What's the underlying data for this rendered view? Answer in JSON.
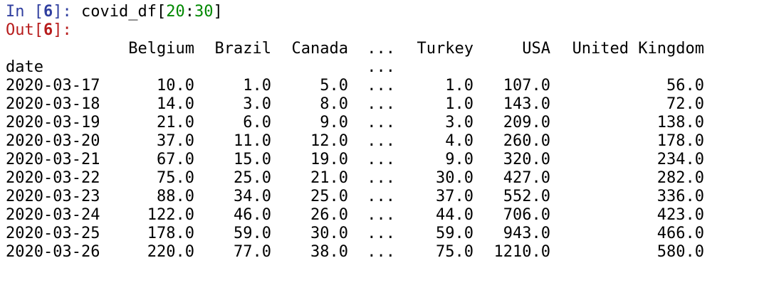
{
  "input": {
    "prompt_label": "In [",
    "exec_count": "6",
    "prompt_close": "]:",
    "code_prefix": "covid_df[",
    "code_start": "20",
    "code_colon": ":",
    "code_end": "30",
    "code_suffix": "]"
  },
  "output": {
    "prompt_label": "Out[",
    "exec_count": "6",
    "prompt_close": "]:"
  },
  "table": {
    "columns": [
      "Belgium",
      "Brazil",
      "Canada",
      "...",
      "Turkey",
      "USA",
      "United Kingdom"
    ],
    "index_name": "date",
    "index_name_ellipsis": "...",
    "rows": [
      {
        "date": "2020-03-17",
        "Belgium": "10.0",
        "Brazil": "1.0",
        "Canada": "5.0",
        "ellipsis": "...",
        "Turkey": "1.0",
        "USA": "107.0",
        "UK": "56.0"
      },
      {
        "date": "2020-03-18",
        "Belgium": "14.0",
        "Brazil": "3.0",
        "Canada": "8.0",
        "ellipsis": "...",
        "Turkey": "1.0",
        "USA": "143.0",
        "UK": "72.0"
      },
      {
        "date": "2020-03-19",
        "Belgium": "21.0",
        "Brazil": "6.0",
        "Canada": "9.0",
        "ellipsis": "...",
        "Turkey": "3.0",
        "USA": "209.0",
        "UK": "138.0"
      },
      {
        "date": "2020-03-20",
        "Belgium": "37.0",
        "Brazil": "11.0",
        "Canada": "12.0",
        "ellipsis": "...",
        "Turkey": "4.0",
        "USA": "260.0",
        "UK": "178.0"
      },
      {
        "date": "2020-03-21",
        "Belgium": "67.0",
        "Brazil": "15.0",
        "Canada": "19.0",
        "ellipsis": "...",
        "Turkey": "9.0",
        "USA": "320.0",
        "UK": "234.0"
      },
      {
        "date": "2020-03-22",
        "Belgium": "75.0",
        "Brazil": "25.0",
        "Canada": "21.0",
        "ellipsis": "...",
        "Turkey": "30.0",
        "USA": "427.0",
        "UK": "282.0"
      },
      {
        "date": "2020-03-23",
        "Belgium": "88.0",
        "Brazil": "34.0",
        "Canada": "25.0",
        "ellipsis": "...",
        "Turkey": "37.0",
        "USA": "552.0",
        "UK": "336.0"
      },
      {
        "date": "2020-03-24",
        "Belgium": "122.0",
        "Brazil": "46.0",
        "Canada": "26.0",
        "ellipsis": "...",
        "Turkey": "44.0",
        "USA": "706.0",
        "UK": "423.0"
      },
      {
        "date": "2020-03-25",
        "Belgium": "178.0",
        "Brazil": "59.0",
        "Canada": "30.0",
        "ellipsis": "...",
        "Turkey": "59.0",
        "USA": "943.0",
        "UK": "466.0"
      },
      {
        "date": "2020-03-26",
        "Belgium": "220.0",
        "Brazil": "77.0",
        "Canada": "38.0",
        "ellipsis": "...",
        "Turkey": "75.0",
        "USA": "1210.0",
        "UK": "580.0"
      }
    ]
  }
}
